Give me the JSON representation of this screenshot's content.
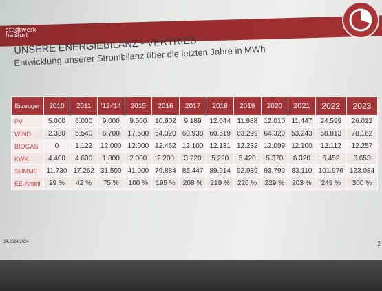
{
  "brand": {
    "line1": "stadtwerk",
    "line2": "haßfurt"
  },
  "title": "UNSERE ENERGIEBILANZ - VERTRIEB",
  "subtitle": "Entwicklung unserer Strombilanz über die letzten Jahre in MWh",
  "table": {
    "header": [
      "Erzeuger",
      "2010",
      "2011",
      "'12-'14",
      "2015",
      "2016",
      "2017",
      "2018",
      "2019",
      "2020",
      "2021",
      "2022",
      "2023"
    ],
    "rows": [
      {
        "label": "PV",
        "values": [
          "5.000",
          "6.000",
          "9.000",
          "9.500",
          "10.902",
          "9.189",
          "12.044",
          "11.988",
          "12.010",
          "11.447",
          "24.599",
          "26.012"
        ]
      },
      {
        "label": "WIND",
        "values": [
          "2.330",
          "5.540",
          "8.700",
          "17.500",
          "54.320",
          "60.938",
          "60.519",
          "63.299",
          "64.320",
          "53.243",
          "58.813",
          "78.162"
        ]
      },
      {
        "label": "BIOGAS",
        "values": [
          "0",
          "1.122",
          "12.000",
          "12.000",
          "12.462",
          "12.100",
          "12.131",
          "12.232",
          "12.099",
          "12.100",
          "12.112",
          "12.257"
        ]
      },
      {
        "label": "KWK",
        "values": [
          "4.400",
          "4.600",
          "1.800",
          "2.000",
          "2.200",
          "3.220",
          "5.220",
          "5.420",
          "5.370",
          "6.320",
          "6.452",
          "6.653"
        ]
      },
      {
        "label": "SUMME",
        "values": [
          "11.730",
          "17.262",
          "31.500",
          "41.000",
          "79.884",
          "85.447",
          "89.914",
          "92.939",
          "93.799",
          "83.110",
          "101.976",
          "123.084"
        ]
      },
      {
        "label": "EE-Anteil",
        "values": [
          "29 %",
          "42 %",
          "75 %",
          "100 %",
          "195 %",
          "208 %",
          "219 %",
          "226 %",
          "229 %",
          "203 %",
          "249 %",
          "300 %"
        ]
      }
    ]
  },
  "footer": {
    "date": "24.2024.2024",
    "page": "2"
  }
}
